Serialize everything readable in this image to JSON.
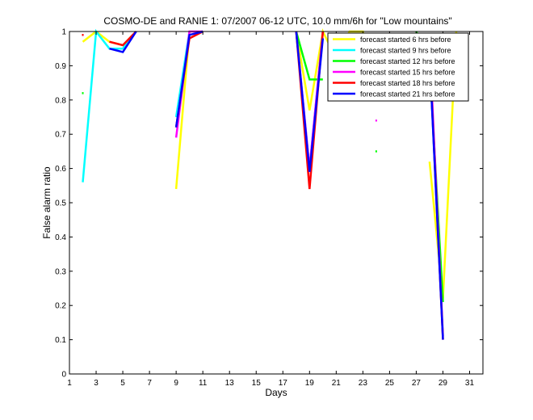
{
  "chart_data": {
    "type": "line",
    "title": "COSMO-DE and RANIE 1: 07/2007 06-12 UTC, 10.0 mm/6h for \"Low mountains\"",
    "xlabel": "Days",
    "ylabel": "False alarm ratio",
    "xlim": [
      1,
      32
    ],
    "ylim": [
      0,
      1
    ],
    "xticks": [
      1,
      3,
      5,
      7,
      9,
      11,
      13,
      15,
      17,
      19,
      21,
      23,
      25,
      27,
      29,
      31
    ],
    "yticks": [
      0,
      0.1,
      0.2,
      0.3,
      0.4,
      0.5,
      0.6,
      0.7,
      0.8,
      0.9,
      1
    ],
    "ytick_labels": [
      "0",
      "0.1",
      "0.2",
      "0.3",
      "0.4",
      "0.5",
      "0.6",
      "0.7",
      "0.8",
      "0.9",
      "1"
    ],
    "grid": false,
    "legend_position": "top-right",
    "series": [
      {
        "name": "forecast started 6 hrs before",
        "color": "#ffff00",
        "points": [
          [
            2,
            0.97
          ],
          [
            3,
            1.0
          ],
          [
            4,
            0.97
          ],
          [
            5,
            0.96
          ],
          [
            6,
            1.0
          ],
          [
            null,
            null
          ],
          [
            9,
            0.54
          ],
          [
            10,
            1.0
          ],
          [
            null,
            null
          ],
          [
            18,
            1.0
          ],
          [
            19,
            0.77
          ],
          [
            20,
            1.0
          ],
          [
            21,
            0.92
          ],
          [
            22,
            1.0
          ],
          [
            23,
            1.0
          ],
          [
            24,
            0.8
          ],
          [
            null,
            null
          ],
          [
            28,
            0.62
          ],
          [
            29,
            0.22
          ],
          [
            30,
            1.0
          ]
        ]
      },
      {
        "name": "forecast started 9 hrs before",
        "color": "#00ffff",
        "points": [
          [
            2,
            0.56
          ],
          [
            3,
            1.0
          ],
          [
            4,
            0.95
          ],
          [
            5,
            0.95
          ],
          [
            6,
            1.0
          ],
          [
            null,
            null
          ],
          [
            9,
            0.75
          ],
          [
            10,
            1.0
          ],
          [
            null,
            null
          ],
          [
            18,
            1.0
          ],
          [
            19,
            0.6
          ],
          [
            20,
            1.0
          ],
          [
            null,
            null
          ],
          [
            28,
            0.93
          ],
          [
            29,
            0.11
          ]
        ]
      },
      {
        "name": "forecast started 12 hrs before",
        "color": "#00ff00",
        "points": [
          [
            2,
            0.82
          ],
          [
            null,
            null
          ],
          [
            18,
            1.0
          ],
          [
            19,
            0.86
          ],
          [
            20,
            0.86
          ],
          [
            null,
            null
          ],
          [
            24,
            0.65
          ],
          [
            null,
            null
          ],
          [
            27,
            1.0
          ],
          [
            28,
            0.91
          ],
          [
            29,
            0.21
          ]
        ]
      },
      {
        "name": "forecast started 15 hrs before",
        "color": "#ff00ff",
        "points": [
          [
            9,
            0.69
          ],
          [
            10,
            1.0
          ],
          [
            11,
            1.0
          ],
          [
            null,
            null
          ],
          [
            18,
            1.0
          ],
          [
            19,
            0.6
          ],
          [
            20,
            1.0
          ],
          [
            null,
            null
          ],
          [
            24,
            0.74
          ],
          [
            null,
            null
          ],
          [
            28,
            0.97
          ],
          [
            29,
            0.11
          ]
        ]
      },
      {
        "name": "forecast started 18 hrs before",
        "color": "#ff0000",
        "points": [
          [
            2,
            0.99
          ],
          [
            null,
            null
          ],
          [
            4,
            0.97
          ],
          [
            5,
            0.96
          ],
          [
            6,
            1.0
          ],
          [
            null,
            null
          ],
          [
            9,
            0.72
          ],
          [
            10,
            0.98
          ],
          [
            11,
            1.0
          ],
          [
            null,
            null
          ],
          [
            18,
            1.0
          ],
          [
            19,
            0.54
          ],
          [
            20,
            1.0
          ],
          [
            null,
            null
          ],
          [
            24,
            0.85
          ],
          [
            null,
            null
          ],
          [
            28,
            0.94
          ],
          [
            29,
            0.1
          ]
        ]
      },
      {
        "name": "forecast started 21 hrs before",
        "color": "#0000ff",
        "points": [
          [
            4,
            0.95
          ],
          [
            5,
            0.94
          ],
          [
            6,
            1.0
          ],
          [
            null,
            null
          ],
          [
            9,
            0.72
          ],
          [
            10,
            0.99
          ],
          [
            11,
            1.0
          ],
          [
            null,
            null
          ],
          [
            18,
            1.0
          ],
          [
            19,
            0.59
          ],
          [
            20,
            0.98
          ],
          [
            null,
            null
          ],
          [
            24,
            0.87
          ],
          [
            null,
            null
          ],
          [
            28,
            0.93
          ],
          [
            29,
            0.1
          ]
        ]
      }
    ]
  }
}
